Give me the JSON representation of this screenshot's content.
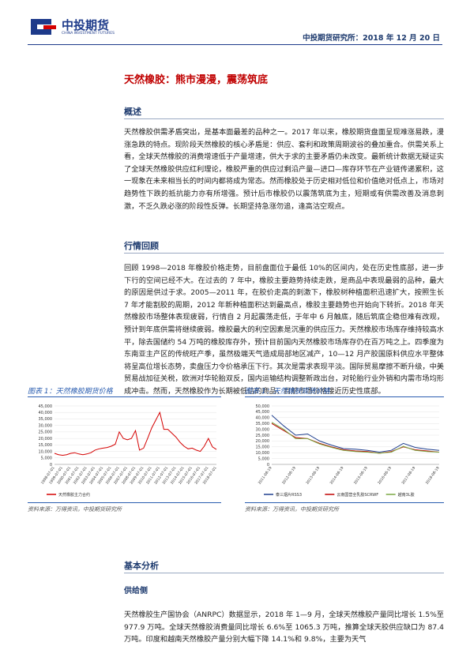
{
  "header": {
    "logo": "中投期货",
    "logo_en": "CHINA INVESTMENT FUTURES",
    "date": "中投期货研究所：2018 年 12 月 20 日"
  },
  "title": "天然橡胶：熊市漫漫，震荡筑底",
  "sections": [
    {
      "heading": "概述",
      "text": "天然橡胶供需矛盾突出，是基本面最差的品种之一。2017 年以来，橡胶期货盘面呈现难涨易跌，漫涨急跌的特点。现阶段天然橡胶的核心矛盾是：供应、套利和政策周期波谷的叠加重合。供需关系上看，全球天然橡胶的消费增速低于产量增速，供大于求的主要矛盾仍未改变。最新统计数据无疑证实了全球天然橡胶供应红利理论，橡胶严重的供应过剩沿产量—进口—库存环节在产业链传递累积，这一现象在未来相当长的时间内都将成为常态。然而橡胶处于历史相对低位和价值绝对低点上，市场对趋势性下跌的抵抗能力亦有所增强。预计后市橡胶仍以震荡筑底为主，短期或有供需改善及消息刺激，不乏久跌必涨的阶段性反弹。长期坚持急涨勿追，逢高沽空观点。"
    },
    {
      "heading": "行情回顾",
      "text": "回顾 1998—2018 年橡胶价格走势，目前盘面位于最低 10%的区间内，处在历史性底部，进一步下行的空间已经不大。在过去的 7 年中，橡胶主要趋势持续走跌，是商品中表现最弱的品种，最大的原因是供过于求。2005—2011 年，在胶价走高的刺激下，橡胶树种植面积迅速扩大，按照生长 7 年才能割胶的周期，2012 年新种植面积达到最高点，橡胶主要趋势也开始向下转折。2018 年天然橡胶市场整体表现疲弱，行情自 2 月起震荡走低，于年中 6 月触底，随后筑底企稳但难有改观，预计到年底供需将继续疲弱。橡胶最大的利空因素是沉重的供应压力。天然橡胶市场库存维持较高水平，除去国储约 54 万吨的橡胶库存外，预计目前国内天然橡胶市场库存仍在百万吨之上。四季度为东南亚主产区的传统旺产季，虽然极端天气造成局部地区减产，10—12 月产胶国原料供应水平整体将呈高位增长态势，卖盘压力令价格承压下行。其次是需求表现平淡。国际贸易摩擦不断升级，中美贸易战加征关税，欧洲对华轮胎双反，国内运输结构调整新政出台，对轮胎行业外销和内需市场均形成冲击。然而，天然橡胶作为长期被低估的商品，目前市场价格接近历史性底部。"
    },
    {
      "heading": "基本分析",
      "subheading": "供给侧",
      "text": "天然橡胶生产国协会（ANRPC）数据显示，2018 年 1—9 月，全球天然橡胶产量同比增长 1.5%至 977.9 万吨。全球天然橡胶消费量同比增长 6.6%至 1065.3 万吨，推算全球天胶供应缺口为 87.4 万吨。印度和越南天然橡胶产量分别大幅下降 14.1%和 9.8%，主要为天气"
    }
  ],
  "figures": [
    {
      "caption": "图表 1：天然橡胶期货价格",
      "source": "资料来源：万得资讯，中投期货研究所"
    },
    {
      "caption": "图表 1：天然橡胶现货价格",
      "source": "资料来源：万得资讯，中投期货研究所"
    }
  ],
  "chart_data": [
    {
      "type": "line",
      "categories": [
        "1998-07-01",
        null,
        "1999-07-01",
        null,
        "2000-07-01",
        null,
        "2001-07-01",
        null,
        "2002-07-01",
        null,
        "2003-07-01",
        null,
        "2004-07-01",
        null,
        "2005-07-01",
        null,
        "2006-07-01",
        null,
        "2007-07-01",
        null,
        "2008-07-01",
        null,
        "2009-07-01",
        null,
        "2010-07-01",
        null,
        "2011-07-01",
        null,
        "2012-07-01",
        null,
        "2013-07-01",
        null,
        "2014-07-01",
        null,
        "2015-07-01",
        null,
        "2016-07-01",
        null,
        "2017-07-01",
        null,
        "2018-07-01"
      ],
      "series": [
        {
          "name": "天然橡胶主力合约",
          "color": "#d40000",
          "values": [
            8500,
            7500,
            7000,
            7500,
            8500,
            9000,
            8000,
            7500,
            8000,
            9000,
            11000,
            12000,
            12500,
            13000,
            14000,
            15500,
            25000,
            20000,
            19000,
            20000,
            26000,
            11000,
            12500,
            20000,
            28000,
            34000,
            40000,
            27000,
            27000,
            24000,
            21000,
            17000,
            14000,
            12000,
            12500,
            11000,
            10000,
            14000,
            20000,
            13500,
            11500
          ]
        }
      ],
      "ylim": [
        0,
        45000
      ],
      "yticks": [
        0,
        {
          "value": 5000,
          "label": "5,000"
        },
        {
          "value": 10000,
          "label": "10,000"
        },
        {
          "value": 15000,
          "label": "15,000"
        },
        {
          "value": 20000,
          "label": "20,000"
        },
        {
          "value": 25000,
          "label": "25,000"
        },
        {
          "value": 30000,
          "label": "30,000"
        },
        {
          "value": 35000,
          "label": "35,000"
        },
        {
          "value": 40000,
          "label": "40,000"
        },
        {
          "value": 45000,
          "label": "45,000"
        }
      ]
    },
    {
      "type": "line",
      "categories": [
        "2011-08-19",
        null,
        "2012-08-19",
        null,
        "2013-08-19",
        null,
        "2014-08-19",
        null,
        "2015-08-19",
        null,
        "2016-08-19",
        null,
        "2017-08-19",
        null,
        "2018-08-19"
      ],
      "series": [
        {
          "name": "泰三烟片RSS3",
          "color": "#1f3f8f",
          "values": [
            42000,
            33000,
            25000,
            26000,
            20000,
            16500,
            13500,
            13000,
            12000,
            10500,
            12000,
            18000,
            14500,
            13000,
            12000
          ]
        },
        {
          "name": "云南国营全乳胶SCRWF",
          "color": "#c00000",
          "values": [
            35000,
            29000,
            23000,
            22000,
            18000,
            15000,
            12500,
            11500,
            11000,
            9500,
            11000,
            15000,
            12500,
            11500,
            10500
          ]
        },
        {
          "name": "越南3L胶",
          "color": "#7aa843",
          "values": [
            36000,
            30000,
            22000,
            22000,
            17500,
            14500,
            12000,
            11000,
            10500,
            9500,
            10500,
            15500,
            12000,
            11000,
            10500
          ]
        }
      ],
      "ylim": [
        0,
        50000
      ],
      "yticks": [
        0,
        {
          "value": 5000,
          "label": "5,000"
        },
        {
          "value": 10000,
          "label": "10,000"
        },
        {
          "value": 15000,
          "label": "15,000"
        },
        {
          "value": 20000,
          "label": "20,000"
        },
        {
          "value": 25000,
          "label": "25,000"
        },
        {
          "value": 30000,
          "label": "30,000"
        },
        {
          "value": 35000,
          "label": "35,000"
        },
        {
          "value": 40000,
          "label": "40,000"
        },
        {
          "value": 45000,
          "label": "45,000"
        },
        {
          "value": 50000,
          "label": "50,000"
        }
      ]
    }
  ]
}
